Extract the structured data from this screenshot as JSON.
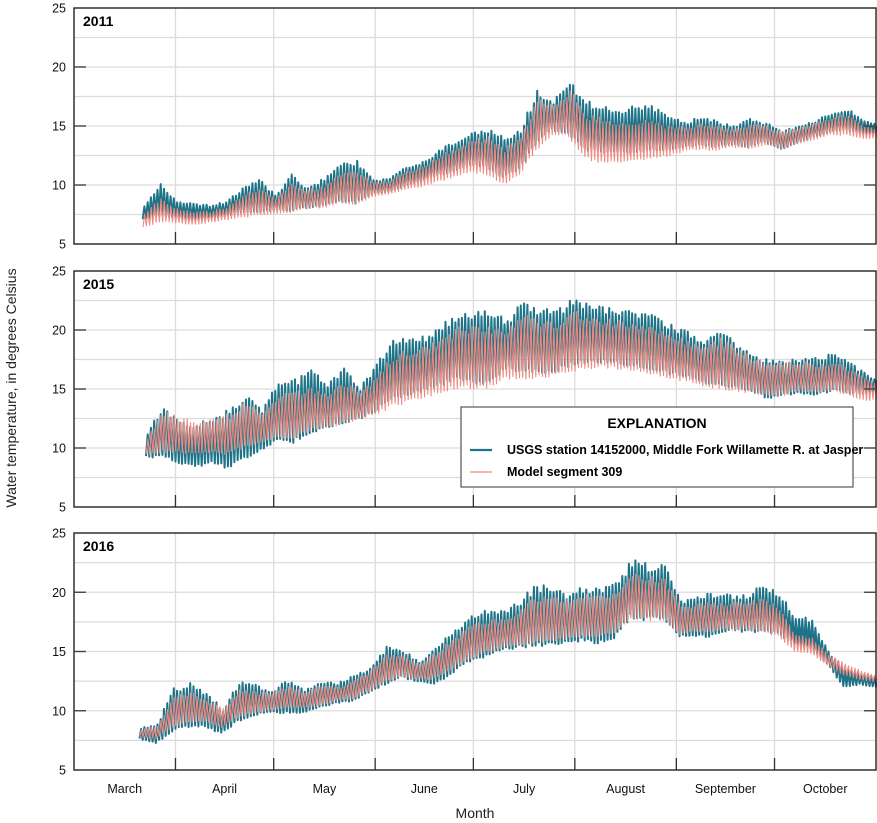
{
  "chart_data": {
    "type": "line",
    "ylabel": "Water temperature, in degrees Celsius",
    "xlabel": "Month",
    "ylim": [
      5,
      25
    ],
    "yticks": [
      5,
      10,
      15,
      20,
      25
    ],
    "x_range_days": [
      0,
      245
    ],
    "x_unit": "days after March 1",
    "month_labels": [
      "March",
      "April",
      "May",
      "June",
      "July",
      "August",
      "September",
      "October"
    ],
    "month_start_days": [
      0,
      31,
      61,
      92,
      122,
      153,
      184,
      214
    ],
    "grid": true,
    "legend": {
      "title": "EXPLANATION",
      "placement": "lower-right of middle panel",
      "entries": [
        {
          "label": "USGS station 14152000, Middle Fork Willamette R. at Jasper",
          "color": "#1d7388"
        },
        {
          "label": "Model segment 309",
          "color": "#f08a80"
        }
      ]
    },
    "series_note": "Daily cycle envelope sampled every 5 days: [daily minimum, daily maximum] in degrees Celsius",
    "step_days": 5,
    "panels": [
      {
        "title": "2011",
        "start_day": 21,
        "observed": [
          [
            7.0,
            8.4
          ],
          [
            7.4,
            10.1
          ],
          [
            7.2,
            8.6
          ],
          [
            7.0,
            8.5
          ],
          [
            7.2,
            8.3
          ],
          [
            7.3,
            8.6
          ],
          [
            7.6,
            9.8
          ],
          [
            7.6,
            10.6
          ],
          [
            7.8,
            9.2
          ],
          [
            7.8,
            10.9
          ],
          [
            8.0,
            9.8
          ],
          [
            8.2,
            10.6
          ],
          [
            8.6,
            11.8
          ],
          [
            8.4,
            12.1
          ],
          [
            9.2,
            10.4
          ],
          [
            9.4,
            10.6
          ],
          [
            9.8,
            11.6
          ],
          [
            10.2,
            12.0
          ],
          [
            10.8,
            13.0
          ],
          [
            11.0,
            13.8
          ],
          [
            11.6,
            14.6
          ],
          [
            11.4,
            14.9
          ],
          [
            10.6,
            14.0
          ],
          [
            11.2,
            14.8
          ],
          [
            13.2,
            18.2
          ],
          [
            14.6,
            17.2
          ],
          [
            14.2,
            18.9
          ],
          [
            13.0,
            17.1
          ],
          [
            12.6,
            16.9
          ],
          [
            12.6,
            16.6
          ],
          [
            12.6,
            16.8
          ],
          [
            12.9,
            16.8
          ],
          [
            12.9,
            15.9
          ],
          [
            13.1,
            15.4
          ],
          [
            13.3,
            15.9
          ],
          [
            13.2,
            15.4
          ],
          [
            13.4,
            15.0
          ],
          [
            13.2,
            15.6
          ],
          [
            13.6,
            15.3
          ],
          [
            13.0,
            14.6
          ],
          [
            13.5,
            15.1
          ],
          [
            14.0,
            15.5
          ],
          [
            14.4,
            16.2
          ],
          [
            14.6,
            16.5
          ],
          [
            14.3,
            15.5
          ],
          [
            14.5,
            15.0
          ]
        ],
        "model": [
          [
            6.4,
            7.6
          ],
          [
            6.8,
            9.0
          ],
          [
            6.8,
            8.0
          ],
          [
            6.6,
            7.8
          ],
          [
            6.8,
            7.8
          ],
          [
            7.0,
            8.2
          ],
          [
            7.2,
            9.2
          ],
          [
            7.4,
            9.8
          ],
          [
            7.6,
            8.8
          ],
          [
            7.6,
            10.2
          ],
          [
            8.0,
            9.6
          ],
          [
            8.0,
            10.0
          ],
          [
            8.4,
            11.2
          ],
          [
            8.2,
            11.4
          ],
          [
            9.0,
            10.2
          ],
          [
            9.2,
            10.4
          ],
          [
            9.6,
            11.2
          ],
          [
            9.8,
            11.6
          ],
          [
            10.2,
            12.6
          ],
          [
            10.6,
            13.2
          ],
          [
            11.0,
            14.0
          ],
          [
            10.8,
            14.2
          ],
          [
            10.0,
            13.2
          ],
          [
            10.8,
            14.2
          ],
          [
            12.8,
            17.4
          ],
          [
            14.2,
            16.8
          ],
          [
            14.0,
            18.2
          ],
          [
            12.2,
            16.0
          ],
          [
            11.8,
            15.8
          ],
          [
            11.8,
            15.4
          ],
          [
            11.9,
            15.6
          ],
          [
            12.1,
            15.8
          ],
          [
            12.4,
            15.0
          ],
          [
            12.8,
            15.0
          ],
          [
            13.0,
            15.2
          ],
          [
            12.9,
            15.0
          ],
          [
            13.2,
            14.8
          ],
          [
            13.0,
            15.2
          ],
          [
            13.4,
            15.0
          ],
          [
            13.0,
            14.6
          ],
          [
            13.4,
            15.0
          ],
          [
            13.8,
            15.3
          ],
          [
            14.2,
            15.8
          ],
          [
            14.2,
            16.0
          ],
          [
            13.9,
            15.0
          ],
          [
            14.0,
            14.6
          ]
        ]
      },
      {
        "title": "2015",
        "start_day": 22,
        "observed": [
          [
            9.2,
            11.4
          ],
          [
            9.2,
            13.7
          ],
          [
            8.6,
            12.4
          ],
          [
            8.4,
            12.0
          ],
          [
            8.6,
            12.8
          ],
          [
            8.2,
            13.4
          ],
          [
            9.0,
            14.6
          ],
          [
            9.8,
            13.2
          ],
          [
            10.6,
            15.7
          ],
          [
            10.4,
            15.9
          ],
          [
            11.2,
            16.7
          ],
          [
            11.6,
            15.6
          ],
          [
            12.0,
            16.9
          ],
          [
            12.4,
            15.2
          ],
          [
            13.0,
            17.2
          ],
          [
            14.0,
            19.4
          ],
          [
            14.4,
            19.3
          ],
          [
            14.8,
            19.5
          ],
          [
            15.2,
            20.6
          ],
          [
            15.6,
            21.8
          ],
          [
            15.4,
            21.6
          ],
          [
            15.4,
            21.7
          ],
          [
            16.6,
            21.0
          ],
          [
            16.4,
            22.6
          ],
          [
            16.2,
            22.0
          ],
          [
            16.4,
            21.7
          ],
          [
            16.8,
            23.0
          ],
          [
            17.2,
            22.2
          ],
          [
            17.2,
            22.0
          ],
          [
            17.0,
            21.8
          ],
          [
            16.8,
            21.6
          ],
          [
            16.6,
            21.2
          ],
          [
            16.2,
            20.5
          ],
          [
            16.0,
            20.0
          ],
          [
            15.4,
            19.2
          ],
          [
            15.2,
            20.2
          ],
          [
            15.0,
            19.0
          ],
          [
            14.6,
            18.2
          ],
          [
            14.2,
            17.4
          ],
          [
            14.4,
            17.6
          ],
          [
            14.6,
            17.6
          ],
          [
            14.4,
            17.8
          ],
          [
            14.8,
            18.2
          ],
          [
            14.6,
            17.2
          ],
          [
            14.6,
            16.2
          ],
          [
            14.8,
            15.6
          ]
        ],
        "model": [
          [
            9.4,
            11.0
          ],
          [
            9.6,
            13.2
          ],
          [
            9.6,
            12.6
          ],
          [
            9.4,
            12.4
          ],
          [
            9.6,
            12.6
          ],
          [
            9.4,
            13.0
          ],
          [
            10.0,
            14.0
          ],
          [
            10.4,
            13.0
          ],
          [
            10.8,
            14.6
          ],
          [
            10.8,
            14.8
          ],
          [
            11.4,
            15.2
          ],
          [
            11.6,
            14.8
          ],
          [
            12.0,
            15.6
          ],
          [
            12.4,
            14.8
          ],
          [
            12.8,
            16.2
          ],
          [
            13.4,
            18.0
          ],
          [
            13.8,
            18.4
          ],
          [
            14.2,
            18.8
          ],
          [
            14.6,
            19.4
          ],
          [
            15.0,
            20.4
          ],
          [
            15.0,
            20.4
          ],
          [
            15.0,
            20.4
          ],
          [
            15.8,
            20.2
          ],
          [
            15.8,
            21.4
          ],
          [
            15.8,
            21.0
          ],
          [
            16.0,
            20.8
          ],
          [
            16.4,
            21.8
          ],
          [
            16.6,
            21.2
          ],
          [
            16.8,
            21.0
          ],
          [
            16.6,
            20.8
          ],
          [
            16.4,
            20.6
          ],
          [
            16.2,
            20.2
          ],
          [
            15.8,
            19.6
          ],
          [
            15.6,
            19.2
          ],
          [
            15.2,
            18.6
          ],
          [
            15.0,
            19.4
          ],
          [
            14.8,
            18.4
          ],
          [
            14.6,
            17.8
          ],
          [
            14.4,
            17.2
          ],
          [
            14.4,
            17.4
          ],
          [
            14.8,
            17.4
          ],
          [
            14.6,
            17.2
          ],
          [
            14.8,
            17.4
          ],
          [
            14.4,
            16.6
          ],
          [
            14.0,
            15.8
          ],
          [
            14.2,
            15.2
          ]
        ]
      },
      {
        "title": "2016",
        "start_day": 20,
        "observed": [
          [
            7.6,
            8.6
          ],
          [
            7.2,
            9.0
          ],
          [
            8.2,
            12.0
          ],
          [
            8.6,
            12.4
          ],
          [
            8.6,
            11.6
          ],
          [
            8.0,
            10.2
          ],
          [
            9.0,
            12.6
          ],
          [
            9.6,
            12.2
          ],
          [
            9.8,
            11.8
          ],
          [
            9.8,
            12.6
          ],
          [
            9.8,
            11.8
          ],
          [
            10.2,
            12.6
          ],
          [
            10.6,
            12.4
          ],
          [
            10.8,
            13.0
          ],
          [
            11.4,
            13.8
          ],
          [
            12.2,
            15.4
          ],
          [
            12.8,
            15.2
          ],
          [
            12.4,
            14.2
          ],
          [
            12.2,
            15.4
          ],
          [
            13.0,
            16.6
          ],
          [
            14.0,
            18.0
          ],
          [
            14.4,
            18.6
          ],
          [
            15.0,
            18.6
          ],
          [
            15.2,
            19.2
          ],
          [
            15.4,
            20.6
          ],
          [
            15.4,
            20.8
          ],
          [
            15.6,
            20.0
          ],
          [
            15.8,
            20.6
          ],
          [
            15.6,
            20.4
          ],
          [
            16.0,
            21.0
          ],
          [
            17.8,
            22.8
          ],
          [
            17.6,
            22.4
          ],
          [
            17.8,
            22.3
          ],
          [
            16.2,
            19.4
          ],
          [
            16.2,
            19.8
          ],
          [
            16.2,
            20.0
          ],
          [
            16.8,
            19.8
          ],
          [
            16.6,
            19.8
          ],
          [
            16.6,
            20.8
          ],
          [
            16.4,
            20.0
          ],
          [
            15.6,
            18.0
          ],
          [
            15.2,
            17.8
          ],
          [
            14.0,
            15.0
          ],
          [
            12.0,
            13.6
          ],
          [
            12.2,
            13.2
          ],
          [
            12.0,
            12.8
          ],
          [
            12.2,
            12.6
          ]
        ],
        "model": [
          [
            7.8,
            8.4
          ],
          [
            7.6,
            8.8
          ],
          [
            8.6,
            11.2
          ],
          [
            9.0,
            11.6
          ],
          [
            9.0,
            11.0
          ],
          [
            8.6,
            10.2
          ],
          [
            9.4,
            11.8
          ],
          [
            9.8,
            11.6
          ],
          [
            10.0,
            11.6
          ],
          [
            10.2,
            12.2
          ],
          [
            10.2,
            11.6
          ],
          [
            10.4,
            12.2
          ],
          [
            10.8,
            12.0
          ],
          [
            11.0,
            12.6
          ],
          [
            11.6,
            13.4
          ],
          [
            12.4,
            14.8
          ],
          [
            12.8,
            14.8
          ],
          [
            12.6,
            14.0
          ],
          [
            12.6,
            15.0
          ],
          [
            13.4,
            16.0
          ],
          [
            14.2,
            17.2
          ],
          [
            14.8,
            17.6
          ],
          [
            15.2,
            17.8
          ],
          [
            15.4,
            18.4
          ],
          [
            15.6,
            19.6
          ],
          [
            15.8,
            19.8
          ],
          [
            16.0,
            19.4
          ],
          [
            16.2,
            19.8
          ],
          [
            16.2,
            19.8
          ],
          [
            16.4,
            20.2
          ],
          [
            17.6,
            21.8
          ],
          [
            17.6,
            21.4
          ],
          [
            17.6,
            21.2
          ],
          [
            16.4,
            18.8
          ],
          [
            16.6,
            19.2
          ],
          [
            16.6,
            19.2
          ],
          [
            16.8,
            19.2
          ],
          [
            16.8,
            19.2
          ],
          [
            16.6,
            19.6
          ],
          [
            16.2,
            18.8
          ],
          [
            15.0,
            16.4
          ],
          [
            14.8,
            16.2
          ],
          [
            13.8,
            14.8
          ],
          [
            13.0,
            14.0
          ],
          [
            12.6,
            13.4
          ],
          [
            12.4,
            13.0
          ],
          [
            12.4,
            12.8
          ]
        ]
      }
    ]
  }
}
